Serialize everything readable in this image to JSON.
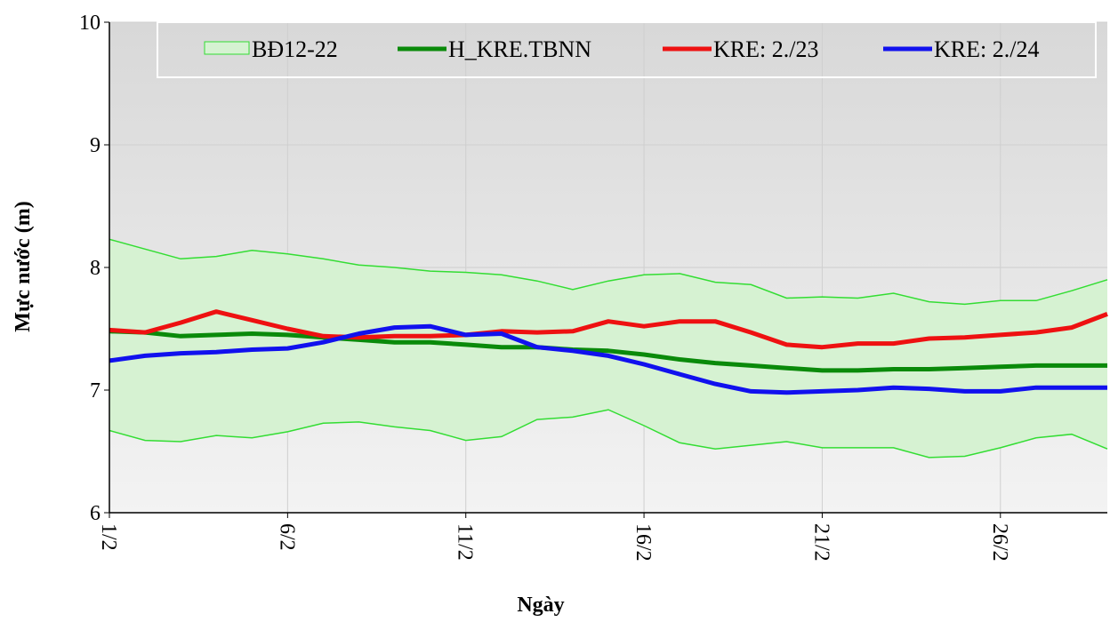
{
  "chart_data": {
    "type": "line",
    "y_label": "Mực nước (m)",
    "x_label": "Ngày",
    "categories": [
      "1/2",
      null,
      null,
      null,
      null,
      "6/2",
      null,
      null,
      null,
      null,
      "11/2",
      null,
      null,
      null,
      null,
      "16/2",
      null,
      null,
      null,
      null,
      "21/2",
      null,
      null,
      null,
      null,
      "26/2",
      null,
      null,
      null
    ],
    "band": {
      "name": "BĐ12-22",
      "color": "#33dd33",
      "fill": "#d6f2d2",
      "upper": [
        8.23,
        8.15,
        8.07,
        8.09,
        8.14,
        8.11,
        8.07,
        8.02,
        8.0,
        7.97,
        7.96,
        7.94,
        7.89,
        7.82,
        7.89,
        7.94,
        7.95,
        7.88,
        7.86,
        7.75,
        7.76,
        7.75,
        7.79,
        7.72,
        7.7,
        7.73,
        7.73,
        7.81,
        7.9
      ],
      "lower": [
        6.67,
        6.59,
        6.58,
        6.63,
        6.61,
        6.66,
        6.73,
        6.74,
        6.7,
        6.67,
        6.59,
        6.62,
        6.76,
        6.78,
        6.84,
        6.71,
        6.57,
        6.52,
        6.55,
        6.58,
        6.53,
        6.53,
        6.53,
        6.45,
        6.46,
        6.53,
        6.61,
        6.64,
        6.52
      ]
    },
    "series": [
      {
        "name": "H_KRE.TBNN",
        "color": "#0a8a0a",
        "values": [
          7.48,
          7.47,
          7.44,
          7.45,
          7.46,
          7.45,
          7.43,
          7.41,
          7.39,
          7.39,
          7.37,
          7.35,
          7.35,
          7.33,
          7.32,
          7.29,
          7.25,
          7.22,
          7.2,
          7.18,
          7.16,
          7.16,
          7.17,
          7.17,
          7.18,
          7.19,
          7.2,
          7.2,
          7.2
        ]
      },
      {
        "name": "KRE: 2./23",
        "color": "#ee1111",
        "values": [
          7.49,
          7.47,
          7.55,
          7.64,
          7.57,
          7.5,
          7.44,
          7.43,
          7.44,
          7.44,
          7.45,
          7.48,
          7.47,
          7.48,
          7.56,
          7.52,
          7.56,
          7.56,
          7.47,
          7.37,
          7.35,
          7.38,
          7.38,
          7.42,
          7.43,
          7.45,
          7.47,
          7.51,
          7.62
        ]
      },
      {
        "name": "KRE: 2./24",
        "color": "#1111ee",
        "values": [
          7.24,
          7.28,
          7.3,
          7.31,
          7.33,
          7.34,
          7.39,
          7.46,
          7.51,
          7.52,
          7.45,
          7.46,
          7.35,
          7.32,
          7.28,
          7.21,
          7.13,
          7.05,
          6.99,
          6.98,
          6.99,
          7.0,
          7.02,
          7.01,
          6.99,
          6.99,
          7.02,
          7.02,
          7.02
        ]
      }
    ],
    "ylim": [
      6,
      10
    ],
    "yticks": [
      6,
      7,
      8,
      9,
      10
    ],
    "grid": true
  }
}
